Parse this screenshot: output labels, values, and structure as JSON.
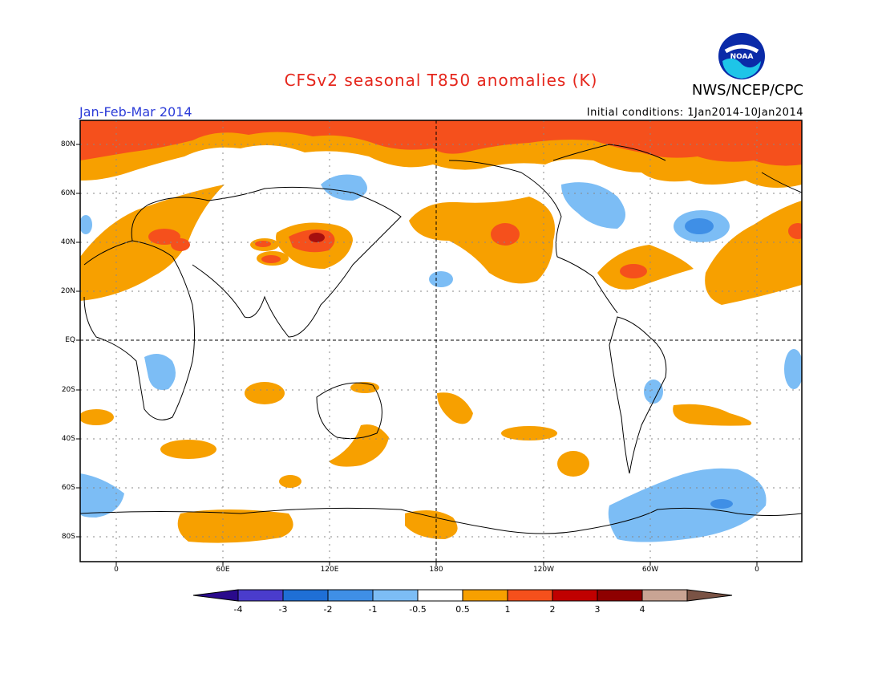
{
  "title": "CFSv2 seasonal T850 anomalies (K)",
  "season": "Jan-Feb-Mar 2014",
  "initial_conditions": "Initial conditions: 1Jan2014-10Jan2014",
  "agency": "NWS/NCEP/CPC",
  "logo_text": "NOAA",
  "lat_labels": [
    "80N",
    "60N",
    "40N",
    "20N",
    "EQ",
    "20S",
    "40S",
    "60S",
    "80S"
  ],
  "lon_labels": [
    "0",
    "60E",
    "120E",
    "180",
    "120W",
    "60W",
    "0"
  ],
  "colorbar": {
    "labels": [
      "-4",
      "-3",
      "-2",
      "-1",
      "-0.5",
      "0.5",
      "1",
      "2",
      "3",
      "4"
    ],
    "colors": [
      "#2a0a8c",
      "#4a3ccc",
      "#1f6fd6",
      "#3f8fe6",
      "#7cbdf5",
      "#ffffff",
      "#f7a000",
      "#f5501c",
      "#c00000",
      "#8e0000",
      "#c9a494",
      "#7a5345"
    ]
  },
  "colors": {
    "orange": "#f7a000",
    "red_orange": "#f5501c",
    "dark_red": "#a50f0f",
    "light_blue": "#7cbdf5",
    "blue": "#3f8fe6"
  }
}
